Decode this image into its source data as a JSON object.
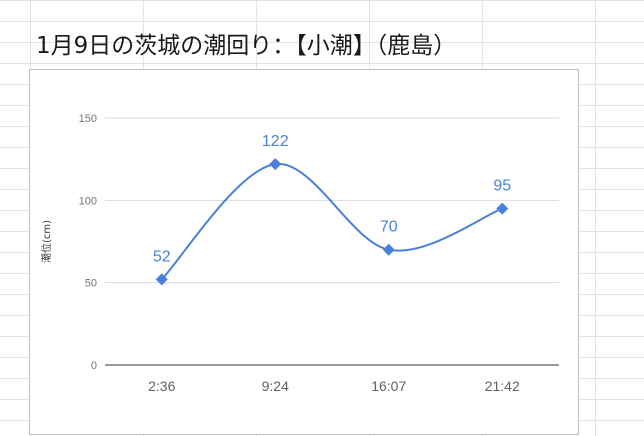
{
  "page": {
    "title": "1月9日の茨城の潮回り：【小潮】（鹿島）"
  },
  "colors": {
    "series": "#4a80d9",
    "grid": "#d9d9d9",
    "baseline": "#333333"
  },
  "chart_data": {
    "type": "line",
    "title": "",
    "xlabel": "",
    "ylabel": "潮位(cm)",
    "categories": [
      "2:36",
      "9:24",
      "16:07",
      "21:42"
    ],
    "series": [
      {
        "values": [
          52,
          122,
          70,
          95
        ]
      }
    ],
    "ylim": [
      0,
      150
    ],
    "yticks": [
      0,
      50,
      100,
      150
    ],
    "grid": true,
    "legend": "none",
    "marker": "diamond",
    "smooth": true,
    "data_labels": true
  }
}
